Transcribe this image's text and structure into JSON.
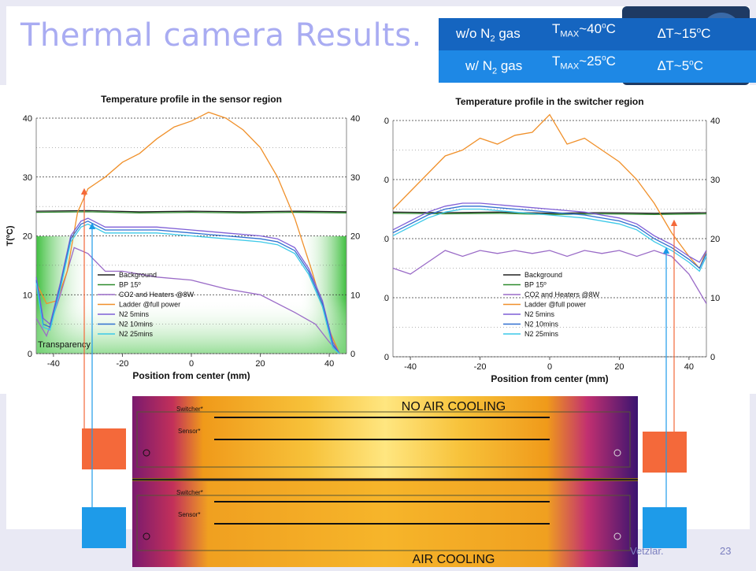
{
  "slide": {
    "title": "Thermal camera Results.",
    "footer_author": "Vetzlar.",
    "page_number": "23"
  },
  "table": {
    "rows": [
      {
        "label": "w/o N",
        "label_sub": "2",
        "label_tail": " gas",
        "tmax_prefix": "T",
        "tmax_sub": "MAX",
        "tmax_val": "~40",
        "tmax_sup": "o",
        "tmax_unit": "C",
        "dt_prefix": "∆T~15",
        "dt_sup": "o",
        "dt_unit": "C"
      },
      {
        "label": "w/ N",
        "label_sub": "2",
        "label_tail": " gas",
        "tmax_prefix": "T",
        "tmax_sub": "MAX",
        "tmax_val": "~25",
        "tmax_sup": "o",
        "tmax_unit": "C",
        "dt_prefix": "∆T~5",
        "dt_sup": "o",
        "dt_unit": "C"
      }
    ],
    "colors": {
      "row1": "#1565c0",
      "row2": "#1e88e5"
    }
  },
  "thermal": {
    "top_label": "NO AIR COOLING",
    "bottom_label": "AIR COOLING",
    "switcher_label": "Switcher*",
    "sensor_label": "Sensor*"
  },
  "markers": {
    "orange": "#f4693a",
    "blue": "#1e9be9"
  },
  "chart_data": [
    {
      "type": "line",
      "title": "Temperature profile in the sensor region",
      "xlabel": "Position from center (mm)",
      "ylabel": "T(ºC)",
      "xlim": [
        -45,
        45
      ],
      "ylim": [
        0,
        40
      ],
      "x_ticks": [
        -40,
        -20,
        0,
        20,
        40
      ],
      "y_ticks": [
        0,
        10,
        20,
        30,
        40
      ],
      "grid": "dashed horizontal",
      "legend_position": "lower-left",
      "annotation": "Transparency",
      "series": [
        {
          "name": "Background",
          "color": "#222222",
          "x": [
            -45,
            -30,
            -15,
            0,
            15,
            30,
            45
          ],
          "y": [
            24.2,
            24.3,
            24.1,
            24.2,
            24.1,
            24.2,
            24.1
          ]
        },
        {
          "name": "BP 15º",
          "color": "#2e8b2e",
          "x": [
            -45,
            -30,
            -15,
            0,
            15,
            30,
            45
          ],
          "y": [
            24.0,
            24.1,
            23.9,
            24.0,
            23.9,
            24.0,
            23.9
          ]
        },
        {
          "name": "CO2 and Heaters @8W",
          "color": "#9a6bc7",
          "x": [
            -45,
            -42,
            -38,
            -34,
            -30,
            -25,
            -20,
            -10,
            0,
            10,
            20,
            30,
            36,
            40,
            43
          ],
          "y": [
            6,
            3,
            10,
            18,
            17,
            14,
            14,
            13,
            12.5,
            11,
            10,
            7,
            5,
            2,
            0
          ]
        },
        {
          "name": "Ladder @full power",
          "color": "#f0902a",
          "x": [
            -45,
            -42,
            -39,
            -36,
            -33,
            -30,
            -25,
            -20,
            -15,
            -10,
            -5,
            0,
            5,
            10,
            15,
            20,
            25,
            30,
            35,
            40,
            43
          ],
          "y": [
            12,
            8.5,
            9,
            14,
            24,
            28,
            30,
            32.5,
            34,
            36.5,
            38.5,
            39.5,
            41,
            40,
            38,
            35,
            30,
            23,
            14,
            4,
            0
          ]
        },
        {
          "name": "N2 5mins",
          "color": "#7f5fd6",
          "x": [
            -45,
            -43,
            -41,
            -38,
            -35,
            -32,
            -30,
            -25,
            -20,
            -10,
            0,
            10,
            20,
            25,
            30,
            34,
            38,
            41,
            43
          ],
          "y": [
            13,
            6,
            5,
            12,
            20,
            22.5,
            23,
            21.5,
            21.5,
            21.5,
            21,
            20.5,
            20,
            19.5,
            18,
            14.5,
            9,
            2,
            0
          ]
        },
        {
          "name": "N2 10mins",
          "color": "#2f6fd0",
          "x": [
            -45,
            -43,
            -41,
            -38,
            -35,
            -32,
            -30,
            -25,
            -20,
            -10,
            0,
            10,
            20,
            25,
            30,
            34,
            38,
            41,
            43
          ],
          "y": [
            12.5,
            5,
            4.5,
            11.5,
            19.5,
            22,
            22.5,
            21,
            21,
            21,
            20.5,
            20,
            19.5,
            19,
            17.5,
            14,
            8.5,
            1.5,
            0
          ]
        },
        {
          "name": "N2 25mins",
          "color": "#3cc9e8",
          "x": [
            -45,
            -43,
            -41,
            -38,
            -35,
            -32,
            -30,
            -25,
            -20,
            -10,
            0,
            10,
            20,
            25,
            30,
            34,
            38,
            41,
            43
          ],
          "y": [
            12,
            4.5,
            4,
            11,
            19,
            21.5,
            22,
            20.5,
            20.5,
            20.5,
            20,
            19.5,
            19,
            18.5,
            17,
            13.5,
            8,
            1,
            0
          ]
        }
      ]
    },
    {
      "type": "line",
      "title": "Temperature profile in the switcher region",
      "xlabel": "Position from center (mm)",
      "ylabel": "",
      "xlim": [
        -45,
        45
      ],
      "ylim": [
        0,
        40
      ],
      "x_ticks": [
        -40,
        -20,
        0,
        20,
        40
      ],
      "y_ticks": [
        0,
        10,
        20,
        30,
        40
      ],
      "grid": "dashed horizontal",
      "legend_position": "lower-left",
      "series": [
        {
          "name": "Background",
          "color": "#222222",
          "x": [
            -45,
            -30,
            -15,
            0,
            15,
            30,
            45
          ],
          "y": [
            24.5,
            24.4,
            24.5,
            24.3,
            24.4,
            24.3,
            24.4
          ]
        },
        {
          "name": "BP 15º",
          "color": "#2e8b2e",
          "x": [
            -45,
            -30,
            -15,
            0,
            15,
            30,
            45
          ],
          "y": [
            24.3,
            24.2,
            24.3,
            24.1,
            24.2,
            24.1,
            24.2
          ]
        },
        {
          "name": "CO2 and Heaters @8W",
          "color": "#9a6bc7",
          "x": [
            -45,
            -40,
            -35,
            -30,
            -25,
            -20,
            -15,
            -10,
            -5,
            0,
            5,
            10,
            15,
            20,
            25,
            30,
            35,
            40,
            43,
            45
          ],
          "y": [
            15,
            14,
            16,
            18,
            17,
            18,
            17.5,
            18,
            17.5,
            18,
            17,
            18,
            17.5,
            18,
            17,
            18,
            17,
            14,
            11,
            9
          ]
        },
        {
          "name": "Ladder @full power",
          "color": "#f0902a",
          "x": [
            -45,
            -40,
            -35,
            -30,
            -25,
            -20,
            -15,
            -10,
            -5,
            0,
            5,
            10,
            15,
            20,
            25,
            30,
            35,
            40,
            43,
            45
          ],
          "y": [
            25,
            28,
            31,
            34,
            35,
            37,
            36,
            37.5,
            38,
            41,
            36,
            37,
            35,
            33,
            30,
            26,
            21,
            17,
            15,
            18
          ]
        },
        {
          "name": "N2 5mins",
          "color": "#7f5fd6",
          "x": [
            -45,
            -40,
            -35,
            -30,
            -25,
            -20,
            -10,
            0,
            10,
            20,
            25,
            30,
            35,
            40,
            43,
            45
          ],
          "y": [
            21.5,
            23,
            24.5,
            25.5,
            26,
            26,
            25.5,
            25,
            24.5,
            23.5,
            22.5,
            20.5,
            19,
            17,
            16,
            18
          ]
        },
        {
          "name": "N2 10mins",
          "color": "#2f6fd0",
          "x": [
            -45,
            -40,
            -35,
            -30,
            -25,
            -20,
            -10,
            0,
            10,
            20,
            25,
            30,
            35,
            40,
            43,
            45
          ],
          "y": [
            21,
            22.5,
            24,
            25,
            25.5,
            25.5,
            25,
            24.5,
            24,
            23,
            22,
            20,
            18.5,
            16.5,
            15,
            17.5
          ]
        },
        {
          "name": "N2 25mins",
          "color": "#3cc9e8",
          "x": [
            -45,
            -40,
            -35,
            -30,
            -25,
            -20,
            -10,
            0,
            10,
            20,
            25,
            30,
            35,
            40,
            43,
            45
          ],
          "y": [
            20.5,
            22,
            23.5,
            24.5,
            25,
            25,
            24.5,
            24,
            23.5,
            22.5,
            21.5,
            19.5,
            18,
            16,
            14.5,
            17
          ]
        }
      ]
    }
  ]
}
